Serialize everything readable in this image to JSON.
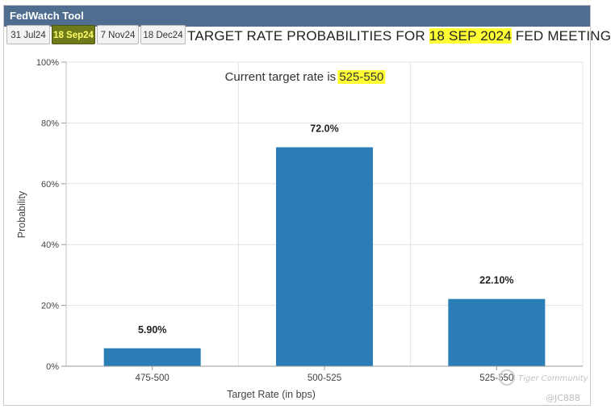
{
  "app": {
    "title": "FedWatch Tool"
  },
  "tabs": [
    {
      "label": "31 Jul24",
      "active": false
    },
    {
      "label": "18 Sep24",
      "active": true
    },
    {
      "label": "7 Nov24",
      "active": false
    },
    {
      "label": "18 Dec24",
      "active": false
    }
  ],
  "headline": {
    "prefix": "TARGET RATE PROBABILITIES FOR ",
    "date": "18 SEP 2024",
    "suffix": " FED MEETING"
  },
  "subtitle": {
    "prefix": "Current target rate is ",
    "rate": "525-550"
  },
  "watermark": {
    "text": "Tiger Community",
    "handle": "@JC888"
  },
  "colors": {
    "bar": "#2a7db5",
    "titlebar": "#4e6d8f",
    "active_tab": "#6f7b1a",
    "highlight": "#ffff33",
    "grid": "#e3e3e3"
  },
  "chart_data": {
    "type": "bar",
    "title": "TARGET RATE PROBABILITIES FOR 18 SEP 2024 FED MEETING",
    "subtitle": "Current target rate is 525-550",
    "categories": [
      "475-500",
      "500-525",
      "525-550"
    ],
    "values": [
      5.9,
      72.0,
      22.1
    ],
    "value_labels": [
      "5.90%",
      "72.0%",
      "22.10%"
    ],
    "xlabel": "Target Rate (in bps)",
    "ylabel": "Probability",
    "ylim": [
      0,
      100
    ],
    "yticks": [
      0,
      20,
      40,
      60,
      80,
      100
    ],
    "ytick_labels": [
      "0%",
      "20%",
      "40%",
      "60%",
      "80%",
      "100%"
    ],
    "grid": true,
    "legend": "none"
  }
}
